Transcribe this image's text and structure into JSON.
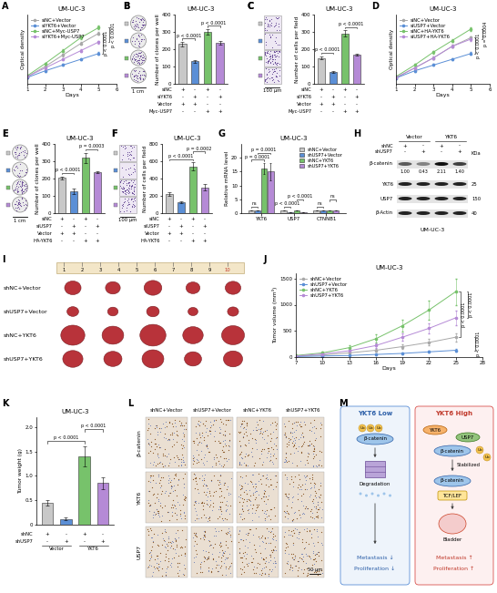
{
  "chart_data": [
    {
      "panel": "A",
      "type": "line",
      "title": "UM-UC-3",
      "xlabel": "Days",
      "ylabel": "Optical density",
      "x": [
        1,
        2,
        3,
        4,
        5
      ],
      "xlim": [
        1,
        6
      ],
      "xticks": [
        1,
        2,
        3,
        4,
        5,
        6
      ],
      "ylim": [
        0,
        2.4
      ],
      "tick_labels": "x",
      "legend": "upper left",
      "marker": "o",
      "series": [
        {
          "name": "siNC+Vector",
          "color": "#a8a8a8",
          "values": [
            0.25,
            0.6,
            1.0,
            1.4,
            1.75
          ],
          "errors": [
            0.02,
            0.03,
            0.04,
            0.05,
            0.06
          ]
        },
        {
          "name": "siYKT6+Vector",
          "color": "#5b8fd6",
          "values": [
            0.22,
            0.45,
            0.65,
            0.85,
            1.05
          ],
          "errors": [
            0.02,
            0.03,
            0.03,
            0.04,
            0.05
          ]
        },
        {
          "name": "siNC+Myc-USP7",
          "color": "#77c26b",
          "values": [
            0.28,
            0.7,
            1.15,
            1.6,
            1.95
          ],
          "errors": [
            0.02,
            0.04,
            0.05,
            0.06,
            0.07
          ]
        },
        {
          "name": "siYKT6+Myc-USP7",
          "color": "#b58ad6",
          "values": [
            0.25,
            0.55,
            0.85,
            1.15,
            1.45
          ],
          "errors": [
            0.02,
            0.03,
            0.04,
            0.05,
            0.05
          ]
        }
      ],
      "annotations": [
        {
          "between": [
            0,
            1
          ],
          "label": "p < 0.0001"
        },
        {
          "between": [
            2,
            3
          ],
          "label": "p < 0.0001"
        }
      ]
    },
    {
      "panel": "B",
      "type": "bar",
      "title": "UM-UC-3",
      "ylabel": "Number of clones per well",
      "values": [
        230,
        130,
        300,
        235
      ],
      "errors": [
        12,
        8,
        15,
        10
      ],
      "colors": [
        "#c8c8c8",
        "#5b8fd6",
        "#77c26b",
        "#b58ad6"
      ],
      "ylim": [
        0,
        400
      ],
      "yticks": [
        0,
        100,
        200,
        300,
        400
      ],
      "tick_labels": "y",
      "conditions": [
        {
          "name": "siNC",
          "signs": [
            "+",
            "-",
            "+",
            "-"
          ]
        },
        {
          "name": "siYKT6",
          "signs": [
            "-",
            "+",
            "-",
            "+"
          ]
        },
        {
          "name": "Vector",
          "signs": [
            "+",
            "+",
            "-",
            "-"
          ]
        },
        {
          "name": "Myc-USP7",
          "signs": [
            "-",
            "-",
            "+",
            "+"
          ]
        }
      ],
      "annotations": [
        {
          "between": [
            0,
            1
          ],
          "label": "p < 0.0001"
        },
        {
          "between": [
            2,
            3
          ],
          "label": "p < 0.0001"
        }
      ]
    },
    {
      "panel": "C",
      "type": "bar",
      "title": "UM-UC-3",
      "ylabel": "Number of cells per field",
      "values": [
        150,
        70,
        290,
        170
      ],
      "errors": [
        10,
        6,
        18,
        5
      ],
      "colors": [
        "#c8c8c8",
        "#5b8fd6",
        "#77c26b",
        "#b58ad6"
      ],
      "ylim": [
        0,
        400
      ],
      "yticks": [
        0,
        100,
        200,
        300,
        400
      ],
      "tick_labels": "y",
      "conditions": [
        {
          "name": "siNC",
          "signs": [
            "+",
            "-",
            "+",
            "-"
          ]
        },
        {
          "name": "siYKT6",
          "signs": [
            "-",
            "+",
            "-",
            "+"
          ]
        },
        {
          "name": "Vector",
          "signs": [
            "+",
            "+",
            "-",
            "-"
          ]
        },
        {
          "name": "Myc-USP7",
          "signs": [
            "-",
            "-",
            "+",
            "+"
          ]
        }
      ],
      "annotations": [
        {
          "between": [
            0,
            1
          ],
          "label": "p < 0.0001"
        },
        {
          "between": [
            2,
            3
          ],
          "label": "p < 0.0001"
        }
      ]
    },
    {
      "panel": "D",
      "type": "line",
      "title": "UM-UC-3",
      "xlabel": "Days",
      "ylabel": "Optical density",
      "x": [
        1,
        2,
        3,
        4,
        5
      ],
      "xlim": [
        1,
        6
      ],
      "xticks": [
        1,
        2,
        3,
        4,
        5,
        6
      ],
      "ylim": [
        0,
        2.4
      ],
      "tick_labels": "x",
      "legend": "upper left",
      "marker": "o",
      "series": [
        {
          "name": "siNC+Vector",
          "color": "#a8a8a8",
          "values": [
            0.2,
            0.55,
            0.9,
            1.3,
            1.6
          ],
          "errors": [
            0.02,
            0.03,
            0.04,
            0.05,
            0.05
          ]
        },
        {
          "name": "siUSP7+Vector",
          "color": "#5b8fd6",
          "values": [
            0.2,
            0.45,
            0.65,
            0.85,
            1.05
          ],
          "errors": [
            0.02,
            0.03,
            0.03,
            0.04,
            0.05
          ]
        },
        {
          "name": "siNC+HA-YKT6",
          "color": "#77c26b",
          "values": [
            0.25,
            0.65,
            1.1,
            1.5,
            1.9
          ],
          "errors": [
            0.02,
            0.04,
            0.05,
            0.06,
            0.07
          ]
        },
        {
          "name": "siUSP7+HA-YKT6",
          "color": "#b58ad6",
          "values": [
            0.22,
            0.55,
            0.9,
            1.3,
            1.55
          ],
          "errors": [
            0.02,
            0.03,
            0.04,
            0.05,
            0.05
          ]
        }
      ],
      "annotations": [
        {
          "between": [
            0,
            1
          ],
          "label": "p < 0.0001"
        },
        {
          "between": [
            2,
            3
          ],
          "label": "p = 0.0004"
        }
      ]
    },
    {
      "panel": "E",
      "type": "bar",
      "title": "UM-UC-3",
      "ylabel": "Number of clones per well",
      "values": [
        205,
        125,
        320,
        235
      ],
      "errors": [
        8,
        15,
        30,
        6
      ],
      "colors": [
        "#c8c8c8",
        "#5b8fd6",
        "#77c26b",
        "#b58ad6"
      ],
      "ylim": [
        0,
        400
      ],
      "yticks": [
        0,
        100,
        200,
        300,
        400
      ],
      "tick_labels": "y",
      "conditions": [
        {
          "name": "siNC",
          "signs": [
            "+",
            "-",
            "+",
            "-"
          ]
        },
        {
          "name": "siUSP7",
          "signs": [
            "-",
            "+",
            "-",
            "+"
          ]
        },
        {
          "name": "Vector",
          "signs": [
            "+",
            "+",
            "-",
            "-"
          ]
        },
        {
          "name": "HA-YKT6",
          "signs": [
            "-",
            "-",
            "+",
            "+"
          ]
        }
      ],
      "annotations": [
        {
          "between": [
            0,
            1
          ],
          "label": "p < 0.0001"
        },
        {
          "between": [
            2,
            3
          ],
          "label": "p = 0.0003"
        }
      ]
    },
    {
      "panel": "F",
      "type": "bar",
      "title": "UM-UC-3",
      "ylabel": "Number of cells per field",
      "values": [
        220,
        125,
        540,
        300
      ],
      "errors": [
        25,
        10,
        45,
        40
      ],
      "colors": [
        "#c8c8c8",
        "#5b8fd6",
        "#77c26b",
        "#b58ad6"
      ],
      "ylim": [
        0,
        800
      ],
      "yticks": [
        0,
        200,
        400,
        600,
        800
      ],
      "tick_labels": "y",
      "conditions": [
        {
          "name": "siNC",
          "signs": [
            "+",
            "-",
            "+",
            "-"
          ]
        },
        {
          "name": "siUSP7",
          "signs": [
            "-",
            "+",
            "-",
            "+"
          ]
        },
        {
          "name": "Vector",
          "signs": [
            "+",
            "+",
            "-",
            "-"
          ]
        },
        {
          "name": "HA-YKT6",
          "signs": [
            "-",
            "-",
            "+",
            "+"
          ]
        }
      ],
      "annotations": [
        {
          "between": [
            0,
            2
          ],
          "label": "p < 0.0001"
        },
        {
          "between": [
            2,
            3
          ],
          "label": "p = 0.0002"
        }
      ]
    },
    {
      "panel": "G",
      "type": "bar",
      "title": "UM-UC-3",
      "ylabel": "Relative mRNA level",
      "categories": [
        "YKT6",
        "USP7",
        "CTNNB1"
      ],
      "ylim": [
        0,
        25
      ],
      "yticks": [
        0,
        5,
        10,
        15,
        20
      ],
      "legend": "upper right",
      "series": [
        {
          "name": "shNC+Vector",
          "color": "#c8c8c8",
          "values": [
            1,
            1,
            1
          ],
          "errors": [
            0.1,
            0.08,
            0.06
          ]
        },
        {
          "name": "shUSP7+Vector",
          "color": "#5b8fd6",
          "values": [
            1.05,
            0.3,
            1.0
          ],
          "errors": [
            0.1,
            0.03,
            0.05
          ]
        },
        {
          "name": "shNC+YKT6",
          "color": "#77c26b",
          "values": [
            16,
            1.0,
            1.05
          ],
          "errors": [
            2.0,
            0.08,
            0.06
          ]
        },
        {
          "name": "shUSP7+YKT6",
          "color": "#b58ad6",
          "values": [
            15,
            0.3,
            1.0
          ],
          "errors": [
            3.0,
            0.03,
            0.05
          ]
        }
      ],
      "annotations": [
        {
          "category": 0,
          "between": [
            0,
            1
          ],
          "label": "ns"
        },
        {
          "category": 0,
          "between": [
            0,
            2
          ],
          "label": "p = 0.0001"
        },
        {
          "category": 0,
          "between": [
            1,
            3
          ],
          "label": "p = 0.0001"
        },
        {
          "category": 1,
          "between": [
            0,
            1
          ],
          "label": "p < 0.0001"
        },
        {
          "category": 1,
          "between": [
            2,
            3
          ],
          "label": "p < 0.0001"
        },
        {
          "category": 2,
          "between": [
            0,
            1
          ],
          "label": "ns"
        },
        {
          "category": 2,
          "between": [
            2,
            3
          ],
          "label": "ns"
        }
      ]
    },
    {
      "panel": "J",
      "type": "line",
      "title": "UM-UC-3",
      "xlabel": "Days",
      "ylabel": "Tumor volume (mm³)",
      "x": [
        7,
        10,
        13,
        16,
        19,
        22,
        25
      ],
      "xlim": [
        7,
        28
      ],
      "xticks": [
        7,
        10,
        13,
        16,
        19,
        22,
        25,
        28
      ],
      "ylim": [
        0,
        1600
      ],
      "yticks": [
        0,
        500,
        1000,
        1500
      ],
      "legend": "upper left",
      "marker": "o",
      "series": [
        {
          "name": "shNC+Vector",
          "color": "#a8a8a8",
          "values": [
            20,
            40,
            80,
            130,
            200,
            280,
            380
          ],
          "errors": [
            5,
            10,
            15,
            25,
            40,
            60,
            80
          ]
        },
        {
          "name": "shUSP7+Vector",
          "color": "#5b8fd6",
          "values": [
            10,
            20,
            30,
            50,
            70,
            100,
            130
          ],
          "errors": [
            3,
            5,
            8,
            10,
            15,
            20,
            30
          ]
        },
        {
          "name": "shNC+YKT6",
          "color": "#77c26b",
          "values": [
            30,
            80,
            180,
            350,
            600,
            900,
            1250
          ],
          "errors": [
            8,
            20,
            40,
            80,
            120,
            180,
            250
          ]
        },
        {
          "name": "shUSP7+YKT6",
          "color": "#b58ad6",
          "values": [
            20,
            60,
            120,
            220,
            380,
            550,
            750
          ],
          "errors": [
            5,
            15,
            25,
            45,
            70,
            100,
            140
          ]
        }
      ],
      "annotations": [
        {
          "between": [
            2,
            0
          ],
          "label": "p < 0.0001"
        },
        {
          "between": [
            2,
            3
          ],
          "label": "p < 0.0001"
        },
        {
          "between": [
            0,
            1
          ],
          "label": "p < 0.0001"
        }
      ]
    },
    {
      "panel": "K",
      "type": "bar",
      "title": "UM-UC-3",
      "ylabel": "Tumor weight (g)",
      "values": [
        0.45,
        0.12,
        1.4,
        0.85
      ],
      "errors": [
        0.06,
        0.03,
        0.2,
        0.12
      ],
      "colors": [
        "#c8c8c8",
        "#5b8fd6",
        "#77c26b",
        "#b58ad6"
      ],
      "ylim": [
        0,
        2.2
      ],
      "yticks": [
        0,
        0.5,
        {
          "value": 1,
          "label": "1.0"
        },
        1.5,
        {
          "value": 2,
          "label": "2.0"
        }
      ],
      "tick_labels": "y",
      "conditions": [
        {
          "name": "shNC",
          "signs": [
            "+",
            "-",
            "+",
            "-"
          ]
        },
        {
          "name": "shUSP7",
          "signs": [
            "-",
            "+",
            "-",
            "+"
          ]
        }
      ],
      "groups": [
        {
          "label": "Vector",
          "span": [
            0,
            1
          ]
        },
        {
          "label": "YKT6",
          "span": [
            2,
            3
          ]
        }
      ],
      "annotations": [
        {
          "between": [
            0,
            2
          ],
          "label": "p < 0.0001"
        },
        {
          "between": [
            2,
            3
          ],
          "label": "p < 0.0001"
        }
      ]
    }
  ],
  "images": [
    {
      "panel": "B",
      "scale_bar": "1 cm"
    },
    {
      "panel": "C",
      "scale_bar": "100 μm"
    },
    {
      "panel": "E",
      "scale_bar": "1 cm"
    },
    {
      "panel": "F",
      "scale_bar": "100 μm"
    }
  ],
  "blot": {
    "panel": "H",
    "title": "UM-UC-3",
    "unit": "KDa",
    "groups": [
      {
        "label": "Vector",
        "span": [
          0,
          1
        ]
      },
      {
        "label": "YKT6",
        "span": [
          2,
          3
        ]
      }
    ],
    "conditions": [
      {
        "name": "shNC",
        "signs": [
          "+",
          "-",
          "+",
          "-"
        ]
      },
      {
        "name": "shUSP7",
        "signs": [
          "-",
          "+",
          "-",
          "+"
        ]
      }
    ],
    "bands": [
      {
        "name": "β-catenin",
        "quant": [
          "1.00",
          "0.43",
          "2.11",
          "1.40"
        ]
      },
      {
        "name": "YKT6",
        "kda": 25
      },
      {
        "name": "USP7",
        "kda": 150
      },
      {
        "name": "β-Actin",
        "kda": 40
      }
    ]
  },
  "tumors": {
    "panel": "I",
    "ruler": [
      1,
      2,
      3,
      4,
      5,
      6,
      7,
      8,
      9,
      10
    ],
    "rows": [
      "shNC+Vector",
      "shUSP7+Vector",
      "shNC+YKT6",
      "shUSP7+YKT6"
    ]
  },
  "ihc": {
    "panel": "L",
    "columns": [
      "shNC+Vector",
      "shUSP7+Vector",
      "shNC+YKT6",
      "shUSP7+YKT6"
    ],
    "rows": [
      "β-catenin",
      "YKT6",
      "USP7"
    ],
    "scale_bar": "50 μm"
  },
  "schematic": {
    "panel": "M",
    "low": {
      "title": "YKT6 Low",
      "protein": "β-catenin",
      "tag": "Ub",
      "fate": "Degradation",
      "outcomes": [
        "Metastasis ↓",
        "Proliferation ↓"
      ]
    },
    "high": {
      "title": "YKT6 High",
      "partners": [
        "YKT6",
        "USP7"
      ],
      "protein": "β-catenin",
      "tag": "Ub",
      "state": "Stabilized",
      "factor": "TCF/LEF",
      "organ": "Bladder",
      "outcomes": [
        "Metastasis ↑",
        "Proliferation ↑"
      ]
    }
  }
}
